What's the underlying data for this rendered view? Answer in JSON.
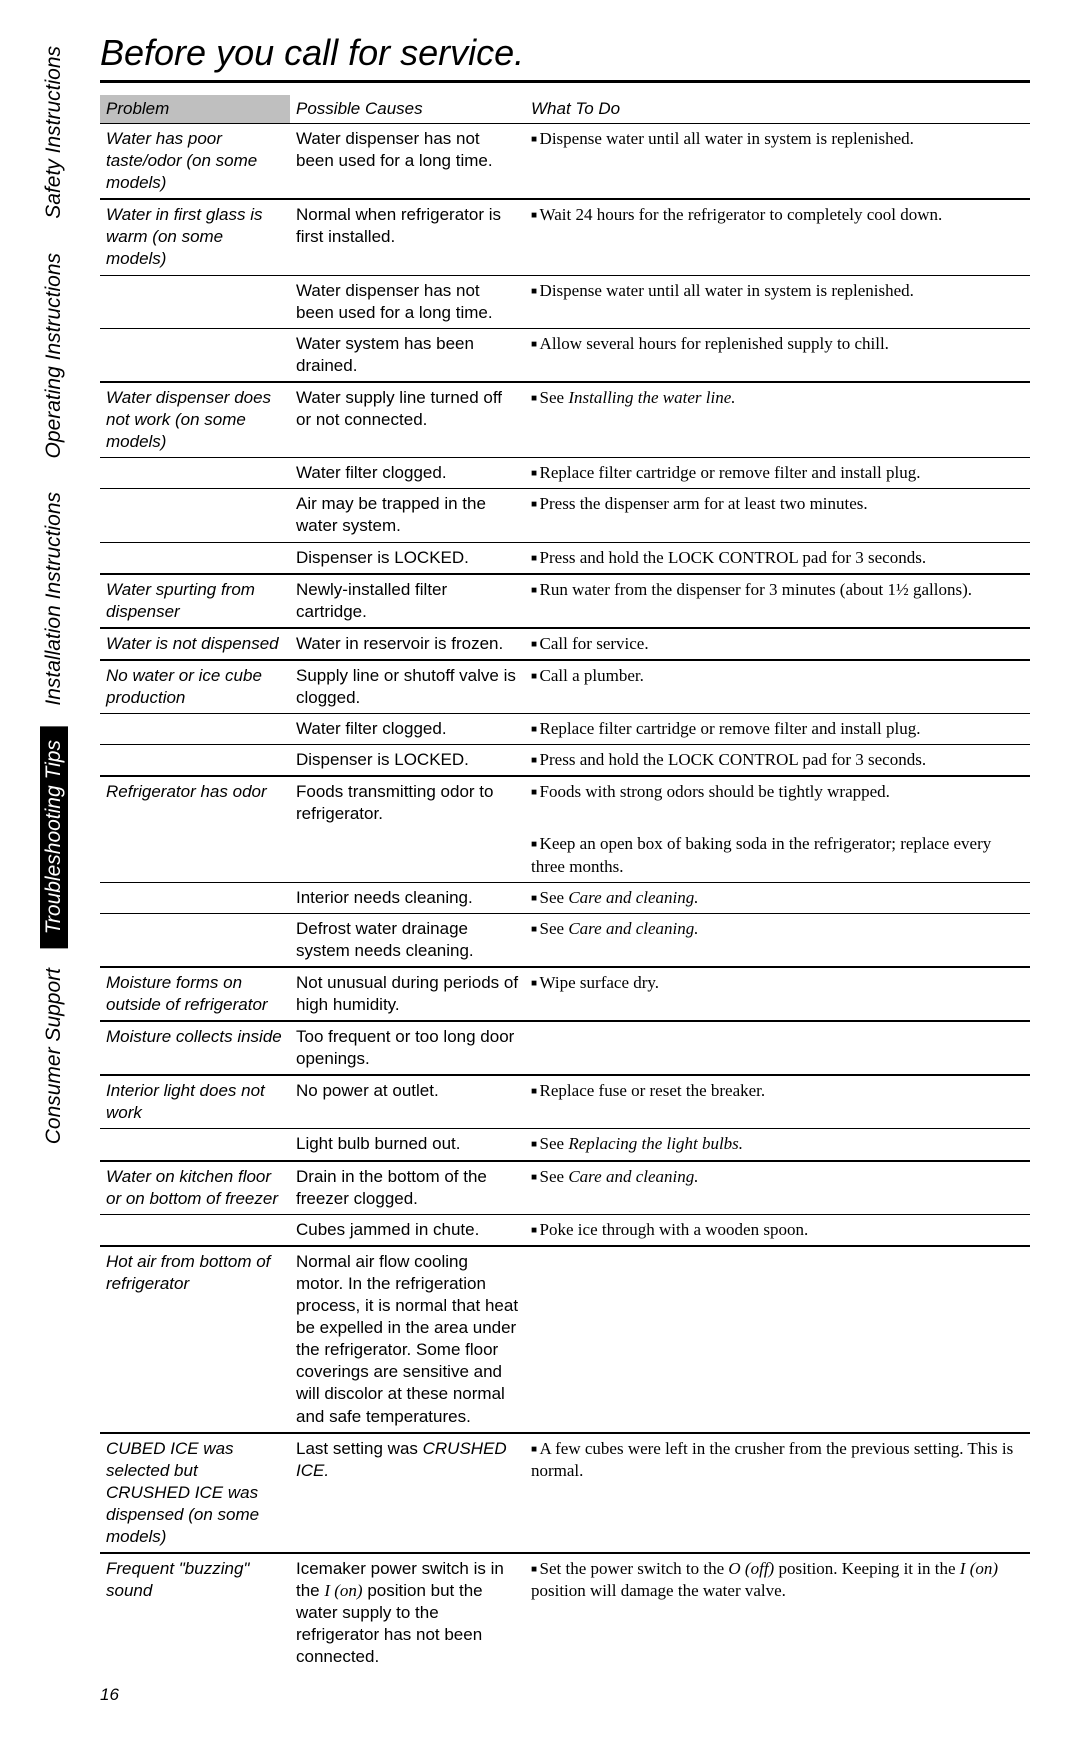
{
  "title": "Before you call for service.",
  "pageNumber": "16",
  "sidetabs": [
    {
      "label": "Safety Instructions",
      "active": false
    },
    {
      "label": "Operating Instructions",
      "active": false
    },
    {
      "label": "Installation Instructions",
      "active": false
    },
    {
      "label": "Troubleshooting Tips",
      "active": true
    },
    {
      "label": "Consumer Support",
      "active": false
    }
  ],
  "headers": {
    "problem": "Problem",
    "causes": "Possible Causes",
    "whattodo": "What To Do"
  },
  "rows": [
    {
      "problem": "Water has poor taste/odor (on some models)",
      "cause": "Water dispenser has not been used for a long time.",
      "action": "Dispense water until all water in system is replenished.",
      "bullet": true,
      "topBorder": false,
      "groupEnd": true
    },
    {
      "problem": "Water in first glass is warm (on some models)",
      "cause": "Normal when refrigerator is first installed.",
      "action": "Wait 24 hours for the refrigerator to completely cool down.",
      "bullet": true,
      "subEnd": true
    },
    {
      "problem": "",
      "cause": "Water dispenser has not been used for a long time.",
      "action": "Dispense water until all water in system is replenished.",
      "bullet": true,
      "subEnd": true
    },
    {
      "problem": "",
      "cause": "Water system has been drained.",
      "action": "Allow several hours for replenished supply to chill.",
      "bullet": true,
      "groupEnd": true
    },
    {
      "problem": "Water dispenser does not work (on some models)",
      "cause": "Water supply line turned off or not connected.",
      "action": "See <span class='ital'>Installing the water line.</span>",
      "bullet": true,
      "subEnd": true
    },
    {
      "problem": "",
      "cause": "Water filter clogged.",
      "action": "Replace filter cartridge or remove filter and install plug.",
      "bullet": true,
      "subEnd": true
    },
    {
      "problem": "",
      "cause": "Air may be trapped in the water system.",
      "action": "Press the dispenser arm for at least two minutes.",
      "bullet": true,
      "subEnd": true
    },
    {
      "problem": "",
      "cause": "Dispenser is LOCKED.",
      "action": "Press and hold the LOCK CONTROL pad for 3 seconds.",
      "bullet": true,
      "groupEnd": true
    },
    {
      "problem": "Water spurting from dispenser",
      "cause": "Newly-installed filter cartridge.",
      "action": "Run water from the dispenser for 3 minutes (about 1½ gallons).",
      "bullet": true,
      "groupEnd": true
    },
    {
      "problem": "Water is not dispensed",
      "cause": "Water in reservoir is frozen.",
      "action": "Call for service.",
      "bullet": true,
      "groupEnd": true
    },
    {
      "problem": "No water or ice cube production",
      "cause": "Supply line or shutoff valve is clogged.",
      "action": "Call a plumber.",
      "bullet": true,
      "subEnd": true
    },
    {
      "problem": "",
      "cause": "Water filter clogged.",
      "action": "Replace filter cartridge or remove filter and install plug.",
      "bullet": true,
      "subEnd": true
    },
    {
      "problem": "",
      "cause": "Dispenser is LOCKED.",
      "action": "Press and hold the LOCK CONTROL pad for 3 seconds.",
      "bullet": true,
      "groupEnd": true
    },
    {
      "problem": "Refrigerator has odor",
      "cause": "Foods transmitting odor to refrigerator.",
      "action": "Foods with strong odors should be tightly wrapped.",
      "bullet": true
    },
    {
      "problem": "",
      "cause": "",
      "action": "Keep an open box of baking soda in the refrigerator; replace every three months.",
      "bullet": true,
      "subEnd": true
    },
    {
      "problem": "",
      "cause": "Interior needs cleaning.",
      "action": "See <span class='ital'>Care and cleaning.</span>",
      "bullet": true,
      "subEnd": true
    },
    {
      "problem": "",
      "cause": "Defrost water drainage system needs cleaning.",
      "action": "See <span class='ital'>Care and cleaning.</span>",
      "bullet": true,
      "groupEnd": true
    },
    {
      "problem": "Moisture forms on outside of refrigerator",
      "cause": "Not unusual during periods of high humidity.",
      "action": "Wipe surface dry.",
      "bullet": true,
      "groupEnd": true
    },
    {
      "problem": "Moisture collects inside",
      "cause": "Too frequent or too long door openings.",
      "action": "",
      "bullet": false,
      "groupEnd": true
    },
    {
      "problem": "Interior light does not work",
      "cause": "No power at outlet.",
      "action": "Replace fuse or reset the breaker.",
      "bullet": true,
      "subEnd": true
    },
    {
      "problem": "",
      "cause": "Light bulb burned out.",
      "action": "See <span class='ital'>Replacing the light bulbs.</span>",
      "bullet": true,
      "groupEnd": true
    },
    {
      "problem": "Water on kitchen floor or on bottom of freezer",
      "cause": "Drain in the bottom of the freezer clogged.",
      "action": "See <span class='ital'>Care and cleaning.</span>",
      "bullet": true,
      "subEnd": true
    },
    {
      "problem": "",
      "cause": "Cubes jammed in chute.",
      "action": "Poke ice through with a wooden spoon.",
      "bullet": true,
      "groupEnd": true
    },
    {
      "problem": "Hot air from bottom of refrigerator",
      "cause": "Normal air flow cooling motor. In the refrigeration process, it is normal that heat be expelled in the area under the refrigerator. Some floor coverings are sensitive and will discolor at these normal and safe temperatures.",
      "action": "",
      "bullet": false,
      "groupEnd": true
    },
    {
      "problem": "CUBED ICE was selected but CRUSHED ICE was dispensed (on some models)",
      "cause": "Last setting was <span class='ital'>CRUSHED ICE.</span>",
      "action": "A few cubes were left in the crusher from the previous setting. This is normal.",
      "bullet": true,
      "groupEnd": true
    },
    {
      "problem": "Frequent \"buzzing\" sound",
      "cause": "Icemaker power switch is in the <span class='st'>I (on)</span> position but the water supply to the refrigerator has not been connected.",
      "action": "Set the power switch to the <span class='ital'>O (off)</span> position. Keeping it in the <span class='ital'>I (on)</span> position will damage the water valve.",
      "bullet": true,
      "groupEnd": false
    }
  ],
  "colWidths": {
    "problem": "190px",
    "cause": "235px",
    "action": "auto"
  }
}
